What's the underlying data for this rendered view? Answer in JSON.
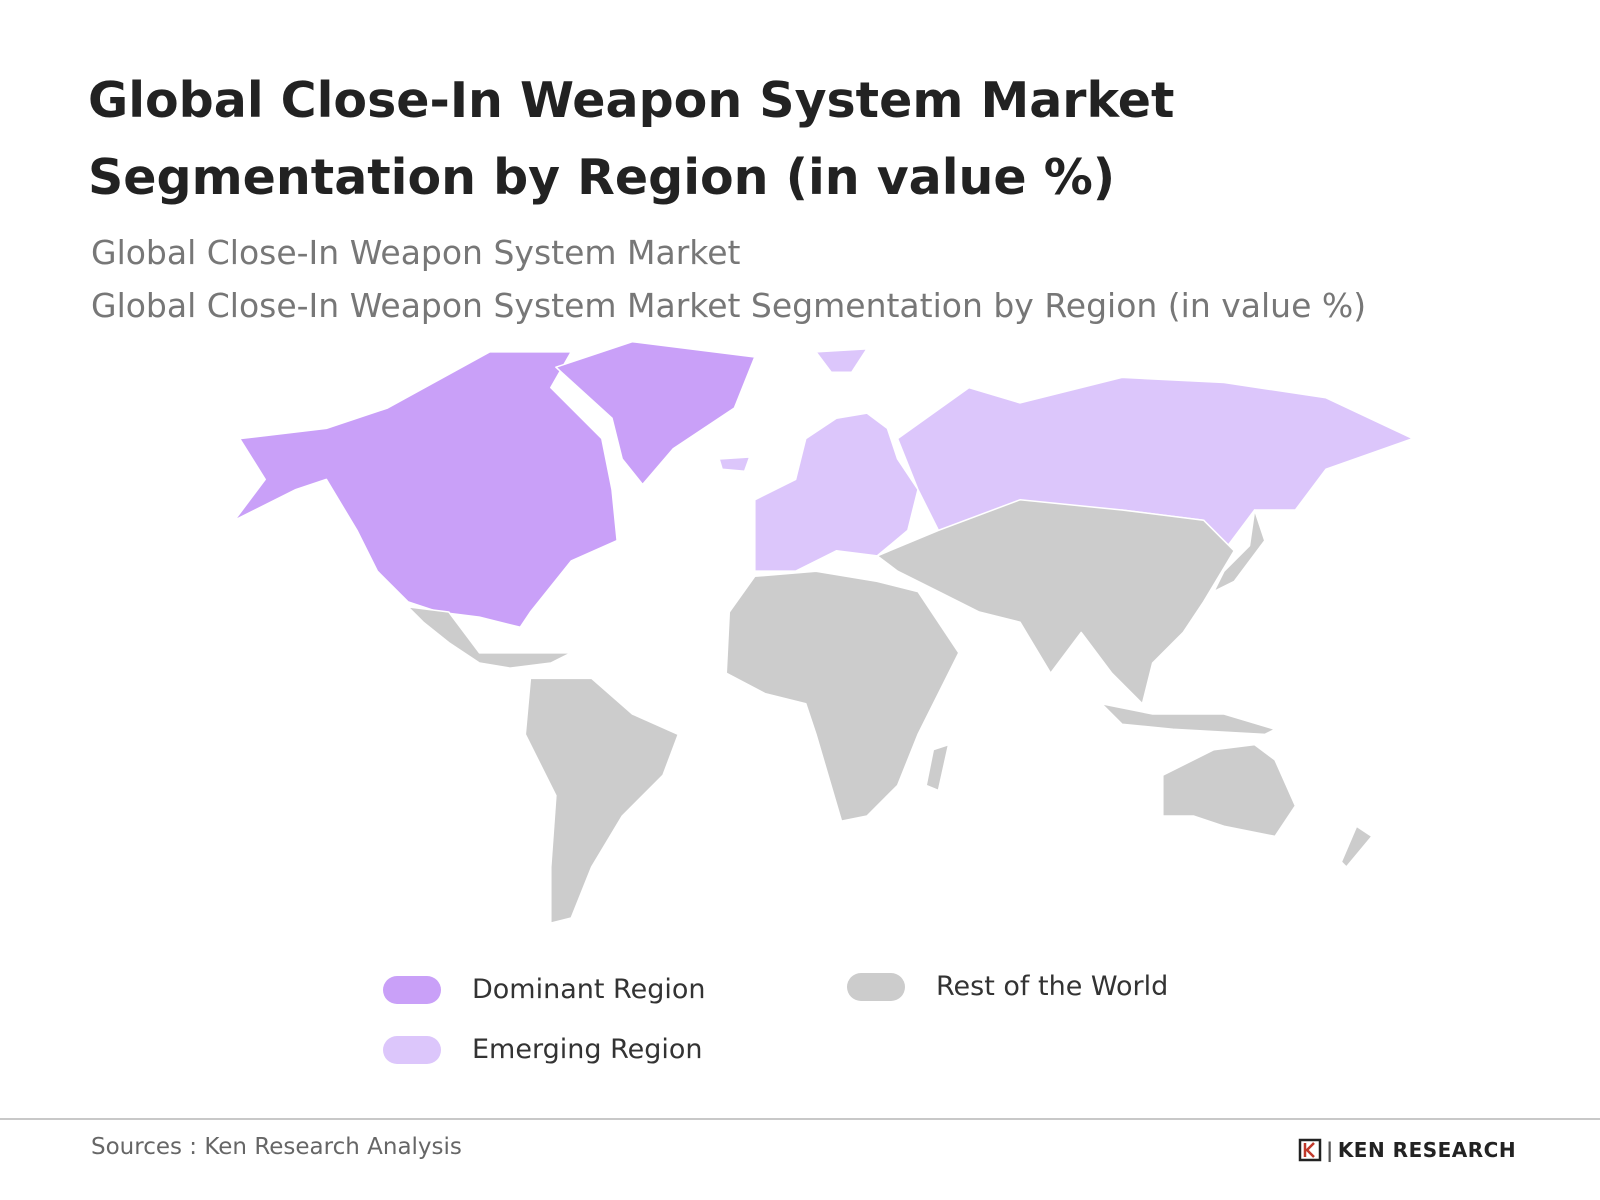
{
  "header": {
    "title": "Global Close-In Weapon System Market Segmentation by Region (in value %)",
    "subtitles": [
      "Global Close-In Weapon System Market",
      "Global Close-In Weapon System Market Segmentation by Region (in value %)"
    ]
  },
  "legend": [
    {
      "label": "Dominant Region",
      "color": "#c9a0f8"
    },
    {
      "label": "Emerging Region",
      "color": "#dcc6fb"
    },
    {
      "label": "Rest of the World",
      "color": "#cccccc"
    }
  ],
  "footer": {
    "source": "Sources : Ken Research Analysis",
    "logo": "KEN RESEARCH"
  }
}
